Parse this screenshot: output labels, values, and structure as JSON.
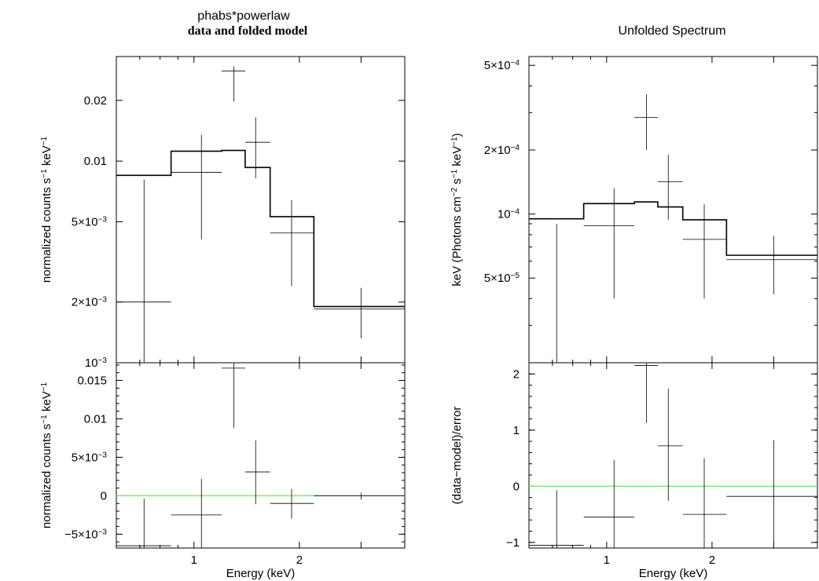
{
  "titles": {
    "left_line1": "phabs*powerlaw",
    "left_line2": "data and folded model",
    "right": "Unfolded Spectrum"
  },
  "colors": {
    "frame": "#000000",
    "data": "#000000",
    "model": "#000000",
    "zero_line": "#7ee87e"
  },
  "chart_data": [
    {
      "id": "left_top",
      "type": "scatter",
      "title": "data and folded model",
      "xlabel": "",
      "ylabel": "normalized counts s⁻¹ keV⁻¹",
      "xscale": "log",
      "yscale": "log",
      "xlim": [
        0.6,
        4.0
      ],
      "ylim": [
        0.001,
        0.033
      ],
      "yticks": [
        {
          "value": 0.001,
          "label": "10⁻³"
        },
        {
          "value": 0.002,
          "label": "2×10⁻³"
        },
        {
          "value": 0.005,
          "label": "5×10⁻³"
        },
        {
          "value": 0.01,
          "label": "0.01"
        },
        {
          "value": 0.02,
          "label": "0.02"
        }
      ],
      "data": [
        {
          "xlo": 0.6,
          "x": 0.72,
          "xhi": 0.86,
          "y": 0.002,
          "ylo": 0.001,
          "yhi": 0.0081
        },
        {
          "xlo": 0.86,
          "x": 1.05,
          "xhi": 1.2,
          "y": 0.0088,
          "ylo": 0.0041,
          "yhi": 0.0135
        },
        {
          "xlo": 1.2,
          "x": 1.3,
          "xhi": 1.4,
          "y": 0.028,
          "ylo": 0.0197,
          "yhi": 0.0295
        },
        {
          "xlo": 1.4,
          "x": 1.5,
          "xhi": 1.65,
          "y": 0.0124,
          "ylo": 0.0082,
          "yhi": 0.0165
        },
        {
          "xlo": 1.65,
          "x": 1.9,
          "xhi": 2.2,
          "y": 0.0044,
          "ylo": 0.0024,
          "yhi": 0.0064
        },
        {
          "xlo": 2.2,
          "x": 3.0,
          "xhi": 4.0,
          "y": 0.00185,
          "ylo": 0.00132,
          "yhi": 0.00235
        }
      ],
      "model": [
        {
          "xlo": 0.6,
          "xhi": 0.86,
          "y": 0.0085
        },
        {
          "xlo": 0.86,
          "xhi": 1.2,
          "y": 0.0112
        },
        {
          "xlo": 1.2,
          "xhi": 1.4,
          "y": 0.0113
        },
        {
          "xlo": 1.4,
          "xhi": 1.65,
          "y": 0.0093
        },
        {
          "xlo": 1.65,
          "xhi": 2.2,
          "y": 0.0053
        },
        {
          "xlo": 2.2,
          "xhi": 4.0,
          "y": 0.0019
        }
      ]
    },
    {
      "id": "left_bottom",
      "type": "scatter",
      "title": "",
      "xlabel": "Energy (keV)",
      "ylabel": "normalized counts s⁻¹ keV⁻¹",
      "xscale": "log",
      "yscale": "linear",
      "xlim": [
        0.6,
        4.0
      ],
      "ylim": [
        -0.0068,
        0.0173
      ],
      "xticks": [
        {
          "value": 1,
          "label": "1"
        },
        {
          "value": 2,
          "label": "2"
        }
      ],
      "yticks": [
        {
          "value": -0.005,
          "label": "−5×10⁻³"
        },
        {
          "value": 0,
          "label": "0"
        },
        {
          "value": 0.005,
          "label": "5×10⁻³"
        },
        {
          "value": 0.01,
          "label": "0.01"
        },
        {
          "value": 0.015,
          "label": "0.015"
        }
      ],
      "zero_line": 0,
      "data": [
        {
          "xlo": 0.6,
          "x": 0.72,
          "xhi": 0.86,
          "y": -0.0065,
          "ylo": -0.0068,
          "yhi": -0.0004
        },
        {
          "xlo": 0.86,
          "x": 1.05,
          "xhi": 1.2,
          "y": -0.0025,
          "ylo": -0.0068,
          "yhi": 0.0022
        },
        {
          "xlo": 1.2,
          "x": 1.3,
          "xhi": 1.4,
          "y": 0.0166,
          "ylo": 0.0088,
          "yhi": 0.0173
        },
        {
          "xlo": 1.4,
          "x": 1.5,
          "xhi": 1.65,
          "y": 0.0031,
          "ylo": -0.0011,
          "yhi": 0.0072
        },
        {
          "xlo": 1.65,
          "x": 1.9,
          "xhi": 2.2,
          "y": -0.001,
          "ylo": -0.003,
          "yhi": 0.0009
        },
        {
          "xlo": 2.2,
          "x": 3.0,
          "xhi": 4.0,
          "y": 0.0,
          "ylo": -0.0005,
          "yhi": 0.0004
        }
      ]
    },
    {
      "id": "right_top",
      "type": "scatter",
      "title": "Unfolded Spectrum",
      "xlabel": "",
      "ylabel": "keV (Photons cm⁻² s⁻¹ keV⁻¹)",
      "xscale": "log",
      "yscale": "log",
      "xlim": [
        0.6,
        4.0
      ],
      "ylim": [
        2e-05,
        0.00055
      ],
      "yticks": [
        {
          "value": 5e-05,
          "label": "5×10⁻⁵"
        },
        {
          "value": 0.0001,
          "label": "10⁻⁴"
        },
        {
          "value": 0.0002,
          "label": "2×10⁻⁴"
        },
        {
          "value": 0.0005,
          "label": "5×10⁻⁴"
        }
      ],
      "minor_yticks": [
        3e-05,
        4e-05,
        6e-05,
        7e-05,
        8e-05,
        9e-05,
        0.0003,
        0.0004
      ],
      "data": [
        {
          "xlo": 0.6,
          "x": 0.72,
          "xhi": 0.86,
          "y": 9.5e-05,
          "ylo": 2e-05,
          "yhi": 9e-05
        },
        {
          "xlo": 0.86,
          "x": 1.05,
          "xhi": 1.2,
          "y": 8.8e-05,
          "ylo": 4e-05,
          "yhi": 0.000132
        },
        {
          "xlo": 1.2,
          "x": 1.3,
          "xhi": 1.4,
          "y": 0.000285,
          "ylo": 0.0002,
          "yhi": 0.000365
        },
        {
          "xlo": 1.4,
          "x": 1.5,
          "xhi": 1.65,
          "y": 0.000142,
          "ylo": 9.4e-05,
          "yhi": 0.00019
        },
        {
          "xlo": 1.65,
          "x": 1.9,
          "xhi": 2.2,
          "y": 7.6e-05,
          "ylo": 4e-05,
          "yhi": 0.000111
        },
        {
          "xlo": 2.2,
          "x": 3.0,
          "xhi": 4.0,
          "y": 6.1e-05,
          "ylo": 4.2e-05,
          "yhi": 7.9e-05
        }
      ],
      "model": [
        {
          "xlo": 0.6,
          "xhi": 0.86,
          "y": 9.5e-05
        },
        {
          "xlo": 0.86,
          "xhi": 1.2,
          "y": 0.000112
        },
        {
          "xlo": 1.2,
          "xhi": 1.4,
          "y": 0.000114
        },
        {
          "xlo": 1.4,
          "xhi": 1.65,
          "y": 0.000108
        },
        {
          "xlo": 1.65,
          "xhi": 2.2,
          "y": 9.4e-05
        },
        {
          "xlo": 2.2,
          "xhi": 4.0,
          "y": 6.4e-05
        }
      ]
    },
    {
      "id": "right_bottom",
      "type": "scatter",
      "title": "",
      "xlabel": "Energy (keV)",
      "ylabel": "(data−model)/error",
      "xscale": "log",
      "yscale": "linear",
      "xlim": [
        0.6,
        4.0
      ],
      "ylim": [
        -1.1,
        2.2
      ],
      "xticks": [
        {
          "value": 1,
          "label": "1"
        },
        {
          "value": 2,
          "label": "2"
        }
      ],
      "yticks": [
        {
          "value": -1,
          "label": "−1"
        },
        {
          "value": 0,
          "label": "0"
        },
        {
          "value": 1,
          "label": "1"
        },
        {
          "value": 2,
          "label": "2"
        }
      ],
      "zero_line": 0,
      "data": [
        {
          "xlo": 0.6,
          "x": 0.72,
          "xhi": 0.86,
          "y": -1.05,
          "ylo": -1.1,
          "yhi": -0.07
        },
        {
          "xlo": 0.86,
          "x": 1.05,
          "xhi": 1.2,
          "y": -0.55,
          "ylo": -1.1,
          "yhi": 0.47
        },
        {
          "xlo": 1.2,
          "x": 1.3,
          "xhi": 1.4,
          "y": 2.15,
          "ylo": 1.13,
          "yhi": 2.2
        },
        {
          "xlo": 1.4,
          "x": 1.5,
          "xhi": 1.65,
          "y": 0.72,
          "ylo": -0.26,
          "yhi": 1.74
        },
        {
          "xlo": 1.65,
          "x": 1.9,
          "xhi": 2.2,
          "y": -0.5,
          "ylo": -1.1,
          "yhi": 0.5
        },
        {
          "xlo": 2.2,
          "x": 3.0,
          "xhi": 4.0,
          "y": -0.18,
          "ylo": -1.1,
          "yhi": 0.82
        }
      ]
    }
  ]
}
